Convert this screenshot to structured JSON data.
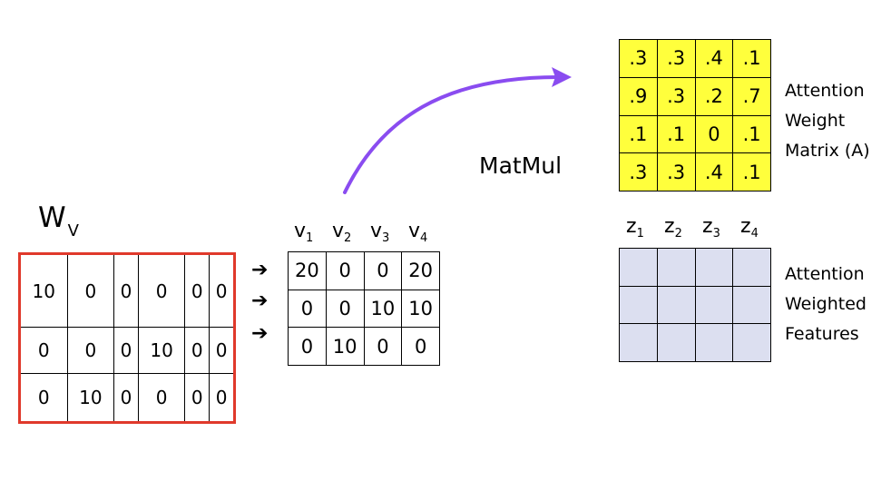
{
  "wv": {
    "label_main": "W",
    "label_sub": "V",
    "rows": [
      [
        "10",
        "0",
        "0",
        "0",
        "0",
        "0"
      ],
      [
        "0",
        "0",
        "0",
        "10",
        "0",
        "0"
      ],
      [
        "0",
        "10",
        "0",
        "0",
        "0",
        "0"
      ]
    ]
  },
  "arrows": [
    "➔",
    "➔",
    "➔"
  ],
  "v": {
    "headers": [
      {
        "main": "v",
        "sub": "1"
      },
      {
        "main": "v",
        "sub": "2"
      },
      {
        "main": "v",
        "sub": "3"
      },
      {
        "main": "v",
        "sub": "4"
      }
    ],
    "rows": [
      [
        "20",
        "0",
        "0",
        "20"
      ],
      [
        "0",
        "0",
        "10",
        "10"
      ],
      [
        "0",
        "10",
        "0",
        "0"
      ]
    ]
  },
  "matmul_label": "MatMul",
  "attention": {
    "rows": [
      [
        ".3",
        ".3",
        ".4",
        ".1"
      ],
      [
        ".9",
        ".3",
        ".2",
        ".7"
      ],
      [
        ".1",
        ".1",
        "0",
        ".1"
      ],
      [
        ".3",
        ".3",
        ".4",
        ".1"
      ]
    ],
    "label_lines": [
      "Attention",
      "Weight",
      "Matrix (A)"
    ]
  },
  "z": {
    "headers": [
      {
        "main": "z",
        "sub": "1"
      },
      {
        "main": "z",
        "sub": "2"
      },
      {
        "main": "z",
        "sub": "3"
      },
      {
        "main": "z",
        "sub": "4"
      }
    ],
    "label_lines": [
      "Attention",
      "Weighted",
      "Features"
    ]
  },
  "colors": {
    "wv_border": "#e0392b",
    "attention_fill": "#ffff3c",
    "z_fill": "#dcdff0",
    "arrow": "#8a4cf0"
  }
}
